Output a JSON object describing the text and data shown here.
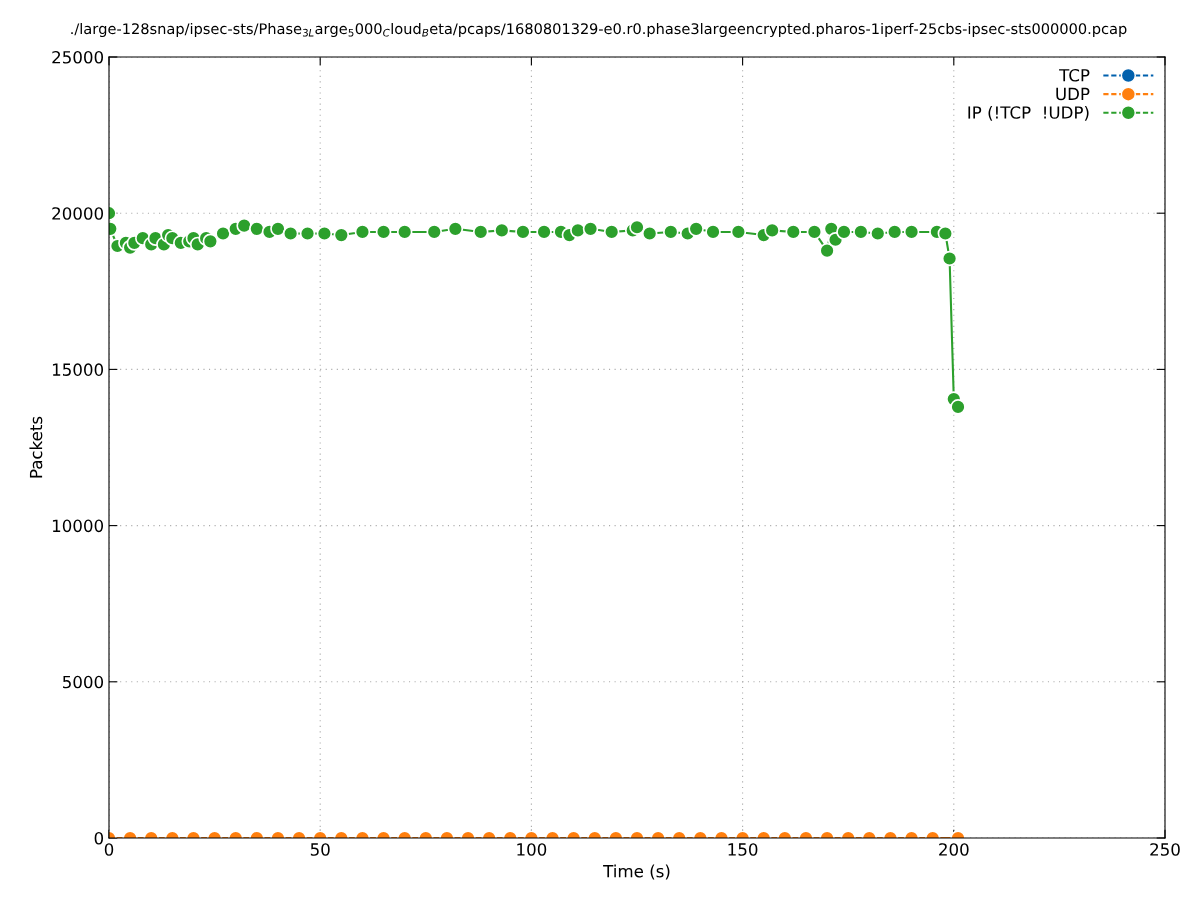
{
  "chart_data": {
    "type": "line",
    "title": "./large-128snap/ipsec-sts/Phase$_{3L}$arge$_{5}$000$_{C}$loud$_{B}$eta/pcaps/1680801329-e0.r0.phase3largeencrypted.pharos-1iperf-25cbs-ipsec-sts000000.pcap",
    "xlabel": "Time (s)",
    "ylabel": "Packets",
    "xlim": [
      0,
      250
    ],
    "xticks": [
      0,
      50,
      100,
      150,
      200,
      250
    ],
    "ylim": [
      0,
      25000
    ],
    "yticks": [
      0,
      5000,
      10000,
      15000,
      20000,
      25000
    ],
    "grid": true,
    "legend": "top right",
    "marker": "circle",
    "line_style": "solid",
    "series": [
      {
        "name": "TCP",
        "color": "#0060ad"
      },
      {
        "name": "UDP",
        "color": "#ff7f0e",
        "x": [
          0,
          5,
          10,
          15,
          20,
          25,
          30,
          35,
          40,
          45,
          50,
          55,
          60,
          65,
          70,
          75,
          80,
          85,
          90,
          95,
          100,
          105,
          110,
          115,
          120,
          125,
          130,
          135,
          140,
          145,
          150,
          155,
          160,
          165,
          170,
          175,
          180,
          185,
          190,
          195,
          201
        ],
        "values": [
          0,
          0,
          0,
          0,
          0,
          0,
          0,
          0,
          0,
          0,
          0,
          0,
          0,
          0,
          0,
          0,
          0,
          0,
          0,
          0,
          0,
          0,
          0,
          0,
          0,
          0,
          0,
          0,
          0,
          0,
          0,
          0,
          0,
          0,
          0,
          0,
          0,
          0,
          0,
          0,
          0
        ]
      },
      {
        "name": "IP (!TCP  !UDP)",
        "color": "#2ca02c",
        "x": [
          0,
          0.3,
          2,
          4,
          5,
          6,
          8,
          10,
          11,
          13,
          14,
          15,
          17,
          19,
          20,
          21,
          23,
          24,
          27,
          30,
          32,
          35,
          38,
          40,
          43,
          47,
          51,
          55,
          60,
          65,
          70,
          77,
          82,
          88,
          93,
          98,
          103,
          107,
          109,
          111,
          114,
          119,
          124,
          125,
          128,
          133,
          137,
          139,
          143,
          149,
          155,
          157,
          162,
          167,
          170,
          171,
          172,
          174,
          178,
          182,
          186,
          190,
          196,
          198,
          199,
          200,
          201
        ],
        "values": [
          20000,
          19500,
          18950,
          19050,
          18900,
          19050,
          19200,
          19000,
          19200,
          19000,
          19300,
          19200,
          19050,
          19100,
          19200,
          19000,
          19200,
          19100,
          19350,
          19500,
          19600,
          19500,
          19400,
          19500,
          19350,
          19350,
          19350,
          19300,
          19400,
          19400,
          19400,
          19400,
          19500,
          19400,
          19450,
          19400,
          19400,
          19400,
          19300,
          19450,
          19500,
          19400,
          19450,
          19550,
          19350,
          19400,
          19350,
          19500,
          19400,
          19400,
          19300,
          19450,
          19400,
          19400,
          18800,
          19500,
          19150,
          19400,
          19400,
          19350,
          19400,
          19400,
          19400,
          19350,
          18550,
          14050,
          13800
        ]
      }
    ]
  }
}
